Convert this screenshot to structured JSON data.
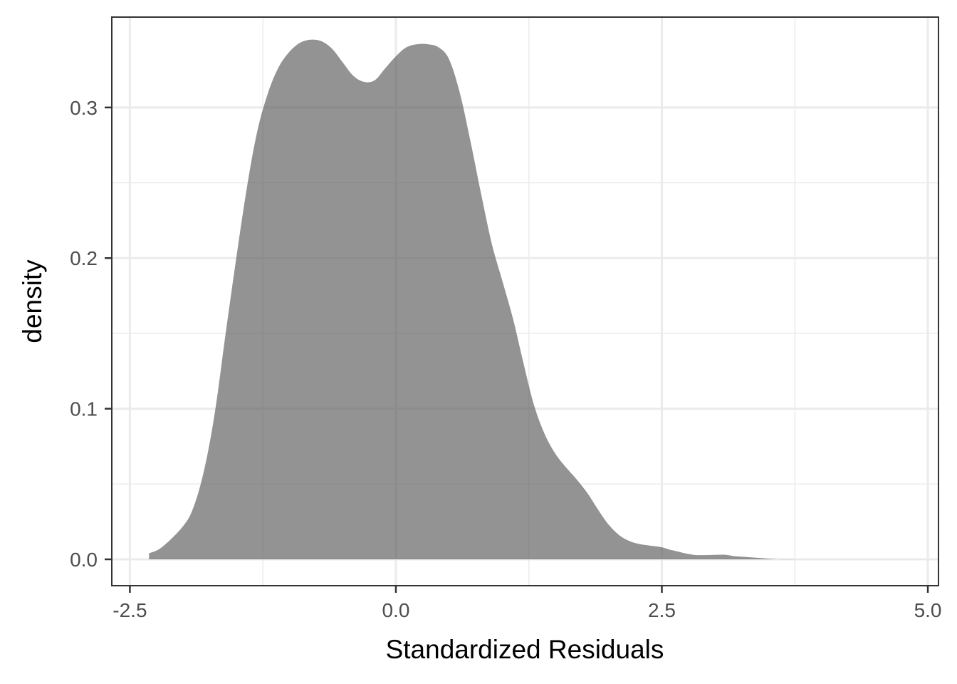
{
  "chart_data": {
    "type": "area",
    "subtype": "density",
    "xlabel": "Standardized Residuals",
    "ylabel": "density",
    "xlim": [
      -2.67,
      5.1
    ],
    "ylim": [
      -0.0175,
      0.36
    ],
    "x_ticks": [
      -2.5,
      0.0,
      2.5,
      5.0
    ],
    "x_tick_labels": [
      "-2.5",
      "0.0",
      "2.5",
      "5.0"
    ],
    "x_minor_ticks": [
      -1.25,
      1.25,
      3.75
    ],
    "y_ticks": [
      0.0,
      0.1,
      0.2,
      0.3
    ],
    "y_tick_labels": [
      "0.0",
      "0.1",
      "0.2",
      "0.3"
    ],
    "y_minor_ticks": [
      0.05,
      0.15,
      0.25
    ],
    "grid": true,
    "fill_color": "#595959",
    "fill_opacity": 0.65,
    "series": [
      {
        "x": [
          -2.32,
          -2.2,
          -2.0,
          -1.9,
          -1.8,
          -1.7,
          -1.6,
          -1.5,
          -1.4,
          -1.3,
          -1.2,
          -1.1,
          -1.0,
          -0.9,
          -0.8,
          -0.7,
          -0.6,
          -0.5,
          -0.4,
          -0.3,
          -0.2,
          -0.1,
          0.0,
          0.1,
          0.2,
          0.3,
          0.4,
          0.5,
          0.6,
          0.7,
          0.8,
          0.9,
          1.0,
          1.1,
          1.2,
          1.3,
          1.4,
          1.5,
          1.6,
          1.7,
          1.8,
          1.9,
          2.0,
          2.1,
          2.2,
          2.3,
          2.4,
          2.5,
          2.6,
          2.8,
          3.0,
          3.1,
          3.2,
          3.4,
          3.6,
          3.8,
          3.9,
          4.0,
          4.2,
          4.5,
          4.8
        ],
        "y": [
          0.004,
          0.008,
          0.022,
          0.035,
          0.06,
          0.098,
          0.15,
          0.2,
          0.247,
          0.285,
          0.31,
          0.327,
          0.337,
          0.343,
          0.345,
          0.344,
          0.339,
          0.33,
          0.321,
          0.317,
          0.318,
          0.326,
          0.334,
          0.34,
          0.342,
          0.342,
          0.34,
          0.332,
          0.31,
          0.278,
          0.243,
          0.21,
          0.185,
          0.16,
          0.13,
          0.102,
          0.083,
          0.07,
          0.061,
          0.053,
          0.044,
          0.033,
          0.023,
          0.016,
          0.012,
          0.01,
          0.009,
          0.008,
          0.006,
          0.003,
          0.003,
          0.003,
          0.002,
          0.001,
          0.0,
          0.0,
          0.0,
          0.0,
          0.0,
          0.0,
          0.0
        ]
      }
    ]
  }
}
